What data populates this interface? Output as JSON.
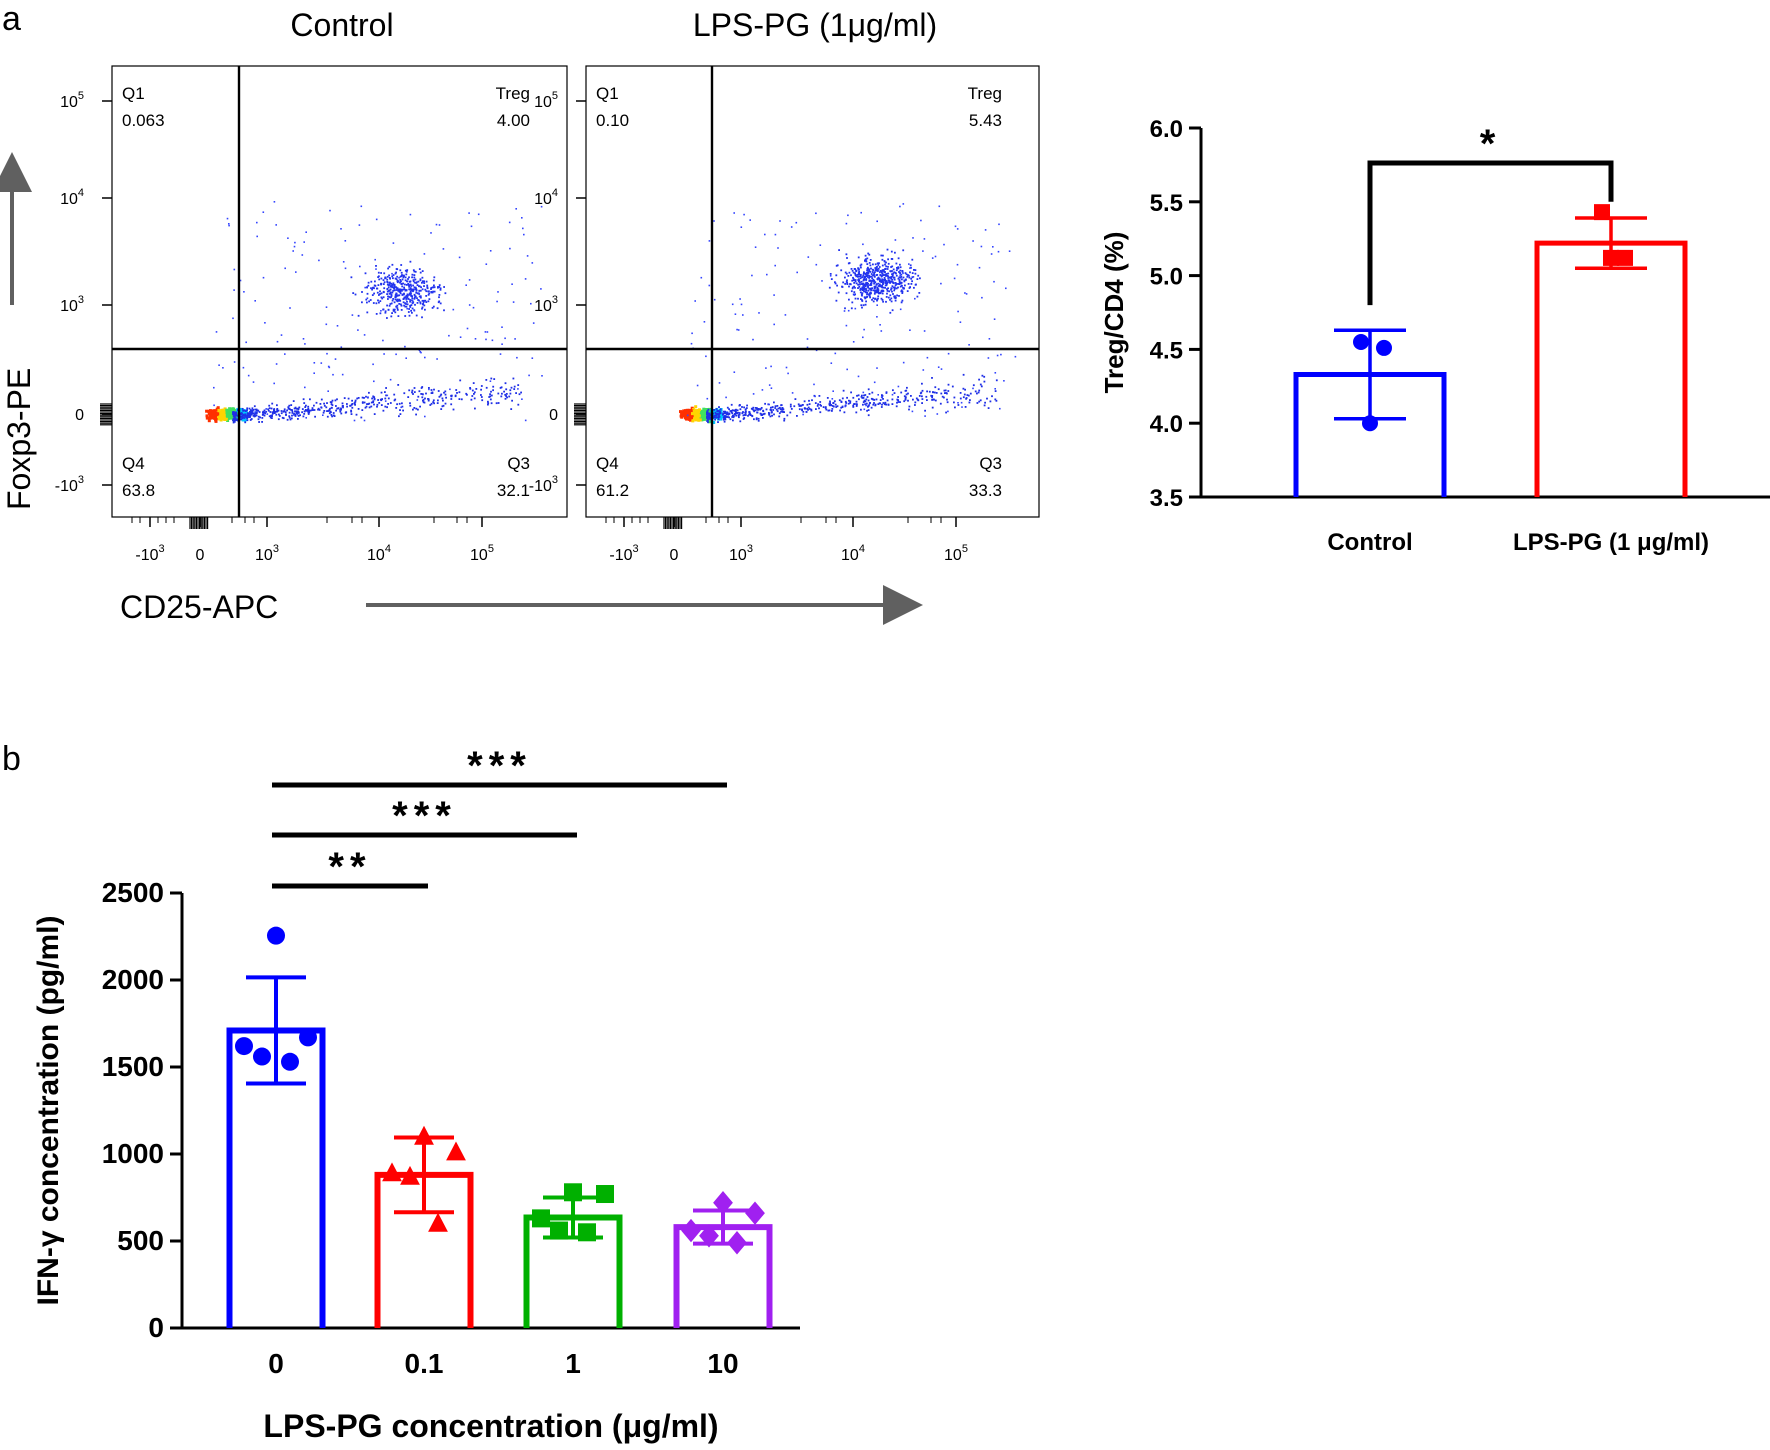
{
  "panel_a": {
    "label": "a",
    "flow": {
      "y_axis_label": "Foxp3-PE",
      "x_axis_label": "CD25-APC",
      "y_ticks": [
        {
          "v": 5,
          "base": "10",
          "exp": "5"
        },
        {
          "v": 4,
          "base": "10",
          "exp": "4"
        },
        {
          "v": 3,
          "base": "10",
          "exp": "3"
        },
        {
          "v": 0,
          "base": "0",
          "exp": ""
        },
        {
          "v": -1,
          "base": "-10",
          "exp": "3"
        }
      ],
      "x_ticks": [
        {
          "v": -1,
          "base": "-10",
          "exp": "3"
        },
        {
          "v": 0,
          "base": "0",
          "exp": ""
        },
        {
          "v": 3,
          "base": "10",
          "exp": "3"
        },
        {
          "v": 4,
          "base": "10",
          "exp": "4"
        },
        {
          "v": 5,
          "base": "10",
          "exp": "5"
        }
      ],
      "plots": [
        {
          "title": "Control",
          "quadrants": [
            {
              "name": "Q1",
              "value": "0.063",
              "pos": "top-left"
            },
            {
              "name": "Treg",
              "value": "4.00",
              "pos": "top-right"
            },
            {
              "name": "Q4",
              "value": "63.8",
              "pos": "bottom-left"
            },
            {
              "name": "Q3",
              "value": "32.1",
              "pos": "bottom-right"
            }
          ]
        },
        {
          "title": "LPS-PG (1μg/ml)",
          "quadrants": [
            {
              "name": "Q1",
              "value": "0.10",
              "pos": "top-left"
            },
            {
              "name": "Treg",
              "value": "5.43",
              "pos": "top-right"
            },
            {
              "name": "Q4",
              "value": "61.2",
              "pos": "bottom-left"
            },
            {
              "name": "Q3",
              "value": "33.3",
              "pos": "bottom-right"
            }
          ]
        }
      ]
    }
  },
  "panel_b": {
    "label": "b"
  },
  "chart_data": [
    {
      "type": "bar",
      "id": "treg-bar-chart",
      "title": "",
      "xlabel": "",
      "ylabel": "Treg/CD4 (%)",
      "ylim": [
        3.5,
        6.0
      ],
      "yticks": [
        "3.5",
        "4.0",
        "4.5",
        "5.0",
        "5.5",
        "6.0"
      ],
      "categories": [
        "Control",
        "LPS-PG (1 μg/ml)"
      ],
      "values": [
        4.33,
        5.22
      ],
      "errors": [
        0.3,
        0.17
      ],
      "points": [
        [
          4.55,
          4.51,
          4.0
        ],
        [
          5.43,
          5.12,
          5.12
        ]
      ],
      "markers": [
        "circle",
        "square"
      ],
      "colors": [
        "#0000ff",
        "#ff0000"
      ],
      "significance": [
        {
          "from": 0,
          "to": 1,
          "label": "*"
        }
      ]
    },
    {
      "type": "bar",
      "id": "ifng-bar-chart",
      "title": "",
      "xlabel": "LPS-PG concentration (μg/ml)",
      "ylabel": "IFN-γ concentration (pg/ml)",
      "ylim": [
        0,
        2500
      ],
      "yticks": [
        "0",
        "500",
        "1000",
        "1500",
        "2000",
        "2500"
      ],
      "categories": [
        "0",
        "0.1",
        "1",
        "10"
      ],
      "values": [
        1710,
        880,
        635,
        580
      ],
      "errors": [
        305,
        215,
        115,
        95
      ],
      "points": [
        [
          2255,
          1670,
          1620,
          1560,
          1530
        ],
        [
          1100,
          1010,
          890,
          870,
          600
        ],
        [
          780,
          770,
          630,
          560,
          550
        ],
        [
          720,
          660,
          560,
          530,
          490
        ]
      ],
      "markers": [
        "circle",
        "triangle",
        "square",
        "diamond"
      ],
      "colors": [
        "#0000ff",
        "#ff0000",
        "#00b000",
        "#a020f0"
      ],
      "significance": [
        {
          "from": 0,
          "to": 1,
          "label": "**"
        },
        {
          "from": 0,
          "to": 2,
          "label": "***"
        },
        {
          "from": 0,
          "to": 3,
          "label": "***"
        }
      ]
    }
  ]
}
